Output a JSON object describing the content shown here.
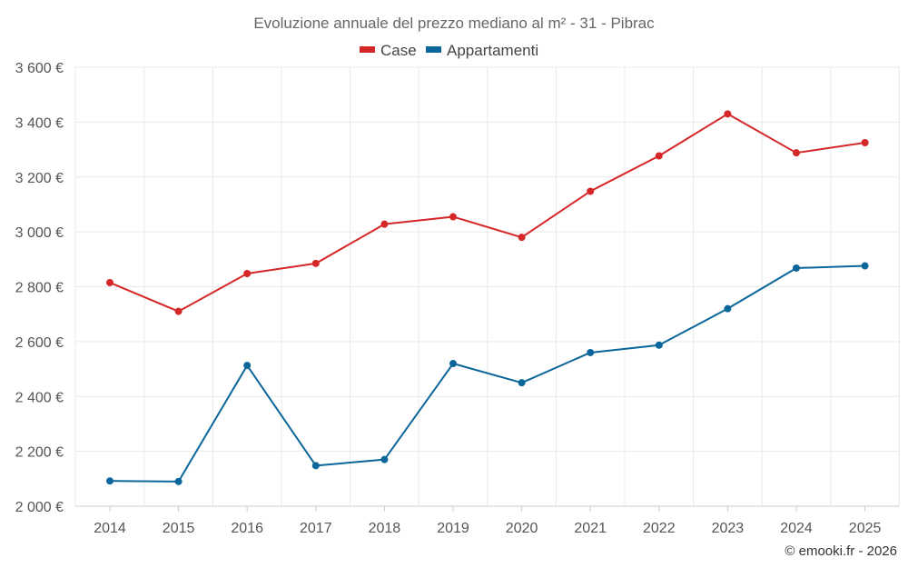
{
  "chart_data": {
    "type": "line",
    "title": "Evoluzione annuale del prezzo mediano al m² - 31 - Pibrac",
    "categories": [
      "2014",
      "2015",
      "2016",
      "2017",
      "2018",
      "2019",
      "2020",
      "2021",
      "2022",
      "2023",
      "2024",
      "2025"
    ],
    "series": [
      {
        "name": "Case",
        "color": "#d62728",
        "values": [
          2815,
          2710,
          2848,
          2885,
          3028,
          3055,
          2980,
          3148,
          3277,
          3430,
          3288,
          3325
        ]
      },
      {
        "name": "Appartamenti",
        "color": "#0b6699",
        "values": [
          2092,
          2090,
          2513,
          2148,
          2170,
          2520,
          2450,
          2560,
          2587,
          2720,
          2868,
          2876
        ]
      }
    ],
    "ylim": [
      2000,
      3600
    ],
    "yticks": [
      2000,
      2200,
      2400,
      2600,
      2800,
      3000,
      3200,
      3400,
      3600
    ],
    "ytick_labels": [
      "2 000 €",
      "2 200 €",
      "2 400 €",
      "2 600 €",
      "2 800 €",
      "3 000 €",
      "3 200 €",
      "3 400 €",
      "3 600 €"
    ],
    "xlabel": "",
    "ylabel": "",
    "grid": true,
    "legend_position": "top-center"
  },
  "credit": "© emooki.fr - 2026"
}
